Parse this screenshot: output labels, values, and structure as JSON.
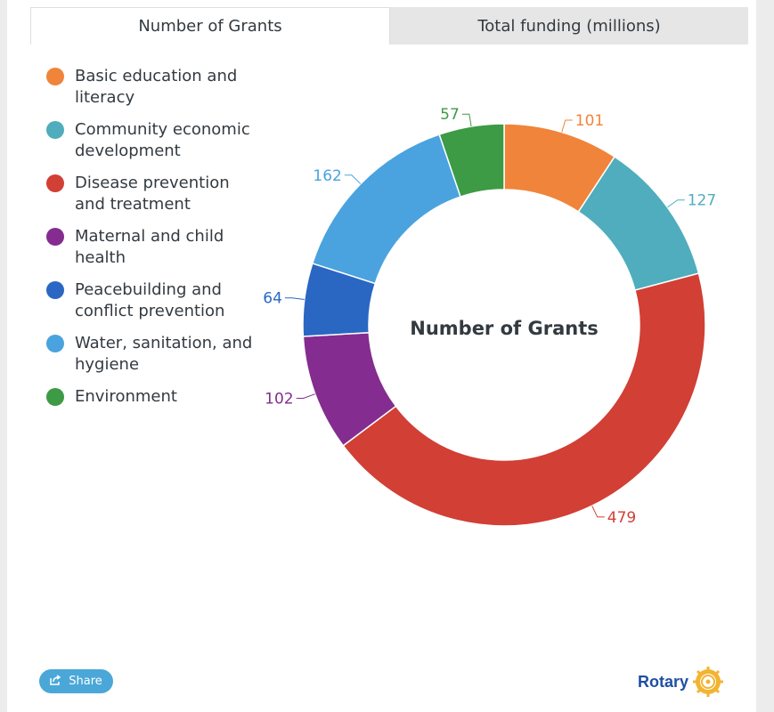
{
  "tabs": [
    {
      "label": "Number of Grants",
      "active": true
    },
    {
      "label": "Total funding (millions)",
      "active": false
    }
  ],
  "share_label": "Share",
  "brand_name": "Rotary",
  "colors": {
    "brand": "#1f4fa2",
    "gear": "#f2b431",
    "share_button": "#4aa7d8"
  },
  "chart_data": {
    "type": "pie",
    "donut": true,
    "center_label": "Number of Grants",
    "legend_position": "left",
    "slices": [
      {
        "name": "Basic education and literacy",
        "legend_lines": [
          "Basic education and",
          "literacy"
        ],
        "value": 101,
        "color": "#f0843a"
      },
      {
        "name": "Community economic development",
        "legend_lines": [
          "Community economic",
          "development"
        ],
        "value": 127,
        "color": "#4fadbd"
      },
      {
        "name": "Disease prevention and treatment",
        "legend_lines": [
          "Disease prevention",
          "and treatment"
        ],
        "value": 479,
        "color": "#d13f35"
      },
      {
        "name": "Maternal and child health",
        "legend_lines": [
          "Maternal and child",
          "health"
        ],
        "value": 102,
        "color": "#842c8f"
      },
      {
        "name": "Peacebuilding and conflict prevention",
        "legend_lines": [
          "Peacebuilding and",
          "conflict prevention"
        ],
        "value": 64,
        "color": "#2a67c3"
      },
      {
        "name": "Water, sanitation, and hygiene",
        "legend_lines": [
          "Water, sanitation, and",
          "hygiene"
        ],
        "value": 162,
        "color": "#4aa3de"
      },
      {
        "name": "Environment",
        "legend_lines": [
          "Environment"
        ],
        "value": 57,
        "color": "#3d9a45"
      }
    ]
  }
}
